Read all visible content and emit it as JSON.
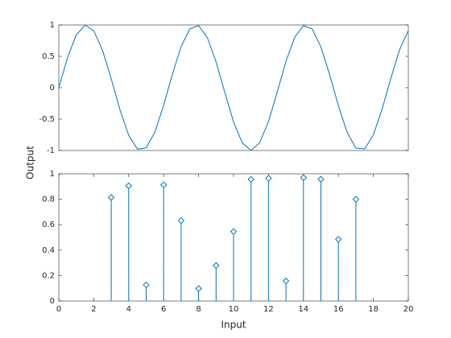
{
  "chart_data": [
    {
      "type": "line",
      "ylabel": "Output",
      "color": "#0072bd",
      "x": [
        0,
        0.5,
        1,
        1.5,
        2,
        2.5,
        3,
        3.5,
        4,
        4.5,
        5,
        5.5,
        6,
        6.5,
        7,
        7.5,
        8,
        8.5,
        9,
        9.5,
        10,
        10.5,
        11,
        11.5,
        12,
        12.5,
        13,
        13.5,
        14,
        14.5,
        15,
        15.5,
        16,
        16.5,
        17,
        17.5,
        18,
        18.5,
        19,
        19.5,
        20
      ],
      "values": [
        0,
        0.479,
        0.841,
        0.997,
        0.909,
        0.598,
        0.141,
        -0.351,
        -0.757,
        -0.978,
        -0.959,
        -0.706,
        -0.279,
        0.215,
        0.657,
        0.938,
        0.989,
        0.798,
        0.412,
        -0.075,
        -0.544,
        -0.88,
        -1,
        -0.875,
        -0.537,
        -0.066,
        0.42,
        0.804,
        0.991,
        0.935,
        0.65,
        0.206,
        -0.288,
        -0.712,
        -0.961,
        -0.976,
        -0.751,
        -0.342,
        0.15,
        0.605,
        0.913
      ],
      "xlim": [
        0,
        20
      ],
      "ylim": [
        -1,
        1
      ],
      "yticks": [
        -1,
        -0.5,
        0,
        0.5,
        1
      ]
    },
    {
      "type": "stem",
      "xlabel": "Input",
      "color": "#0072bd",
      "x": [
        3,
        4,
        5,
        6,
        7,
        8,
        9,
        10,
        11,
        12,
        13,
        14,
        15,
        16,
        17
      ],
      "values": [
        0.8147,
        0.9058,
        0.127,
        0.9134,
        0.6324,
        0.0975,
        0.2785,
        0.5469,
        0.9575,
        0.9649,
        0.1576,
        0.9706,
        0.9572,
        0.4854,
        0.8003
      ],
      "xlim": [
        0,
        20
      ],
      "ylim": [
        0,
        1
      ],
      "xticks": [
        0,
        2,
        4,
        6,
        8,
        10,
        12,
        14,
        16,
        18,
        20
      ],
      "yticks": [
        0,
        0.2,
        0.4,
        0.6,
        0.8,
        1
      ]
    }
  ]
}
